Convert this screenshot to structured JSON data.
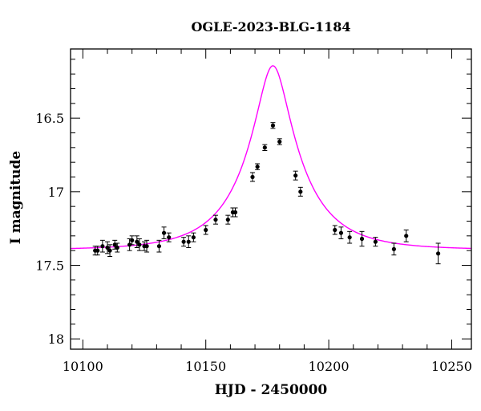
{
  "chart_data": {
    "type": "scatter",
    "title": "OGLE-2023-BLG-1184",
    "xlabel": "HJD - 2450000",
    "ylabel": "I magnitude",
    "xlim": [
      10095,
      10258
    ],
    "ylim": [
      18.07,
      16.03
    ],
    "y_inverted": true,
    "x_ticks": [
      10100,
      10150,
      10200,
      10250
    ],
    "y_ticks": [
      16.5,
      17,
      17.5,
      18
    ],
    "y_tick_labels": [
      "16.5",
      "17",
      "17.5",
      "18"
    ],
    "grid": false,
    "colors": {
      "data": "#000000",
      "model": "#ff00ff",
      "frame": "#000000"
    },
    "series": [
      {
        "kind": "data-with-errorbars",
        "points": [
          {
            "x": 10105,
            "y": 17.4,
            "err": 0.03
          },
          {
            "x": 10106,
            "y": 17.4,
            "err": 0.03
          },
          {
            "x": 10108,
            "y": 17.37,
            "err": 0.04
          },
          {
            "x": 10110,
            "y": 17.38,
            "err": 0.04
          },
          {
            "x": 10111,
            "y": 17.4,
            "err": 0.04
          },
          {
            "x": 10113,
            "y": 17.36,
            "err": 0.03
          },
          {
            "x": 10114,
            "y": 17.38,
            "err": 0.03
          },
          {
            "x": 10119,
            "y": 17.36,
            "err": 0.04
          },
          {
            "x": 10120,
            "y": 17.33,
            "err": 0.03
          },
          {
            "x": 10122,
            "y": 17.34,
            "err": 0.04
          },
          {
            "x": 10123,
            "y": 17.36,
            "err": 0.04
          },
          {
            "x": 10125,
            "y": 17.37,
            "err": 0.03
          },
          {
            "x": 10126,
            "y": 17.37,
            "err": 0.04
          },
          {
            "x": 10131,
            "y": 17.37,
            "err": 0.04
          },
          {
            "x": 10133,
            "y": 17.28,
            "err": 0.04
          },
          {
            "x": 10135,
            "y": 17.31,
            "err": 0.03
          },
          {
            "x": 10141,
            "y": 17.34,
            "err": 0.03
          },
          {
            "x": 10143,
            "y": 17.34,
            "err": 0.04
          },
          {
            "x": 10145,
            "y": 17.31,
            "err": 0.03
          },
          {
            "x": 10150,
            "y": 17.26,
            "err": 0.03
          },
          {
            "x": 10154,
            "y": 17.19,
            "err": 0.03
          },
          {
            "x": 10159,
            "y": 17.19,
            "err": 0.03
          },
          {
            "x": 10161,
            "y": 17.14,
            "err": 0.03
          },
          {
            "x": 10162,
            "y": 17.14,
            "err": 0.03
          },
          {
            "x": 10169,
            "y": 16.9,
            "err": 0.03
          },
          {
            "x": 10171,
            "y": 16.83,
            "err": 0.02
          },
          {
            "x": 10174,
            "y": 16.7,
            "err": 0.02
          },
          {
            "x": 10177.3,
            "y": 16.55,
            "err": 0.02
          },
          {
            "x": 10180,
            "y": 16.66,
            "err": 0.02
          },
          {
            "x": 10186.5,
            "y": 16.89,
            "err": 0.03
          },
          {
            "x": 10188.5,
            "y": 17.0,
            "err": 0.03
          },
          {
            "x": 10202.5,
            "y": 17.26,
            "err": 0.03
          },
          {
            "x": 10205,
            "y": 17.28,
            "err": 0.04
          },
          {
            "x": 10208.5,
            "y": 17.31,
            "err": 0.04
          },
          {
            "x": 10213.5,
            "y": 17.32,
            "err": 0.05
          },
          {
            "x": 10219,
            "y": 17.34,
            "err": 0.03
          },
          {
            "x": 10226.5,
            "y": 17.39,
            "err": 0.04
          },
          {
            "x": 10231.5,
            "y": 17.3,
            "err": 0.04
          },
          {
            "x": 10244.5,
            "y": 17.42,
            "err": 0.07
          }
        ]
      },
      {
        "kind": "model-curve",
        "model": {
          "t0": 10177.3,
          "tE": 25,
          "u0": 0.25,
          "baseline_mag": 17.395,
          "blend_fraction": 0.7
        }
      }
    ]
  }
}
